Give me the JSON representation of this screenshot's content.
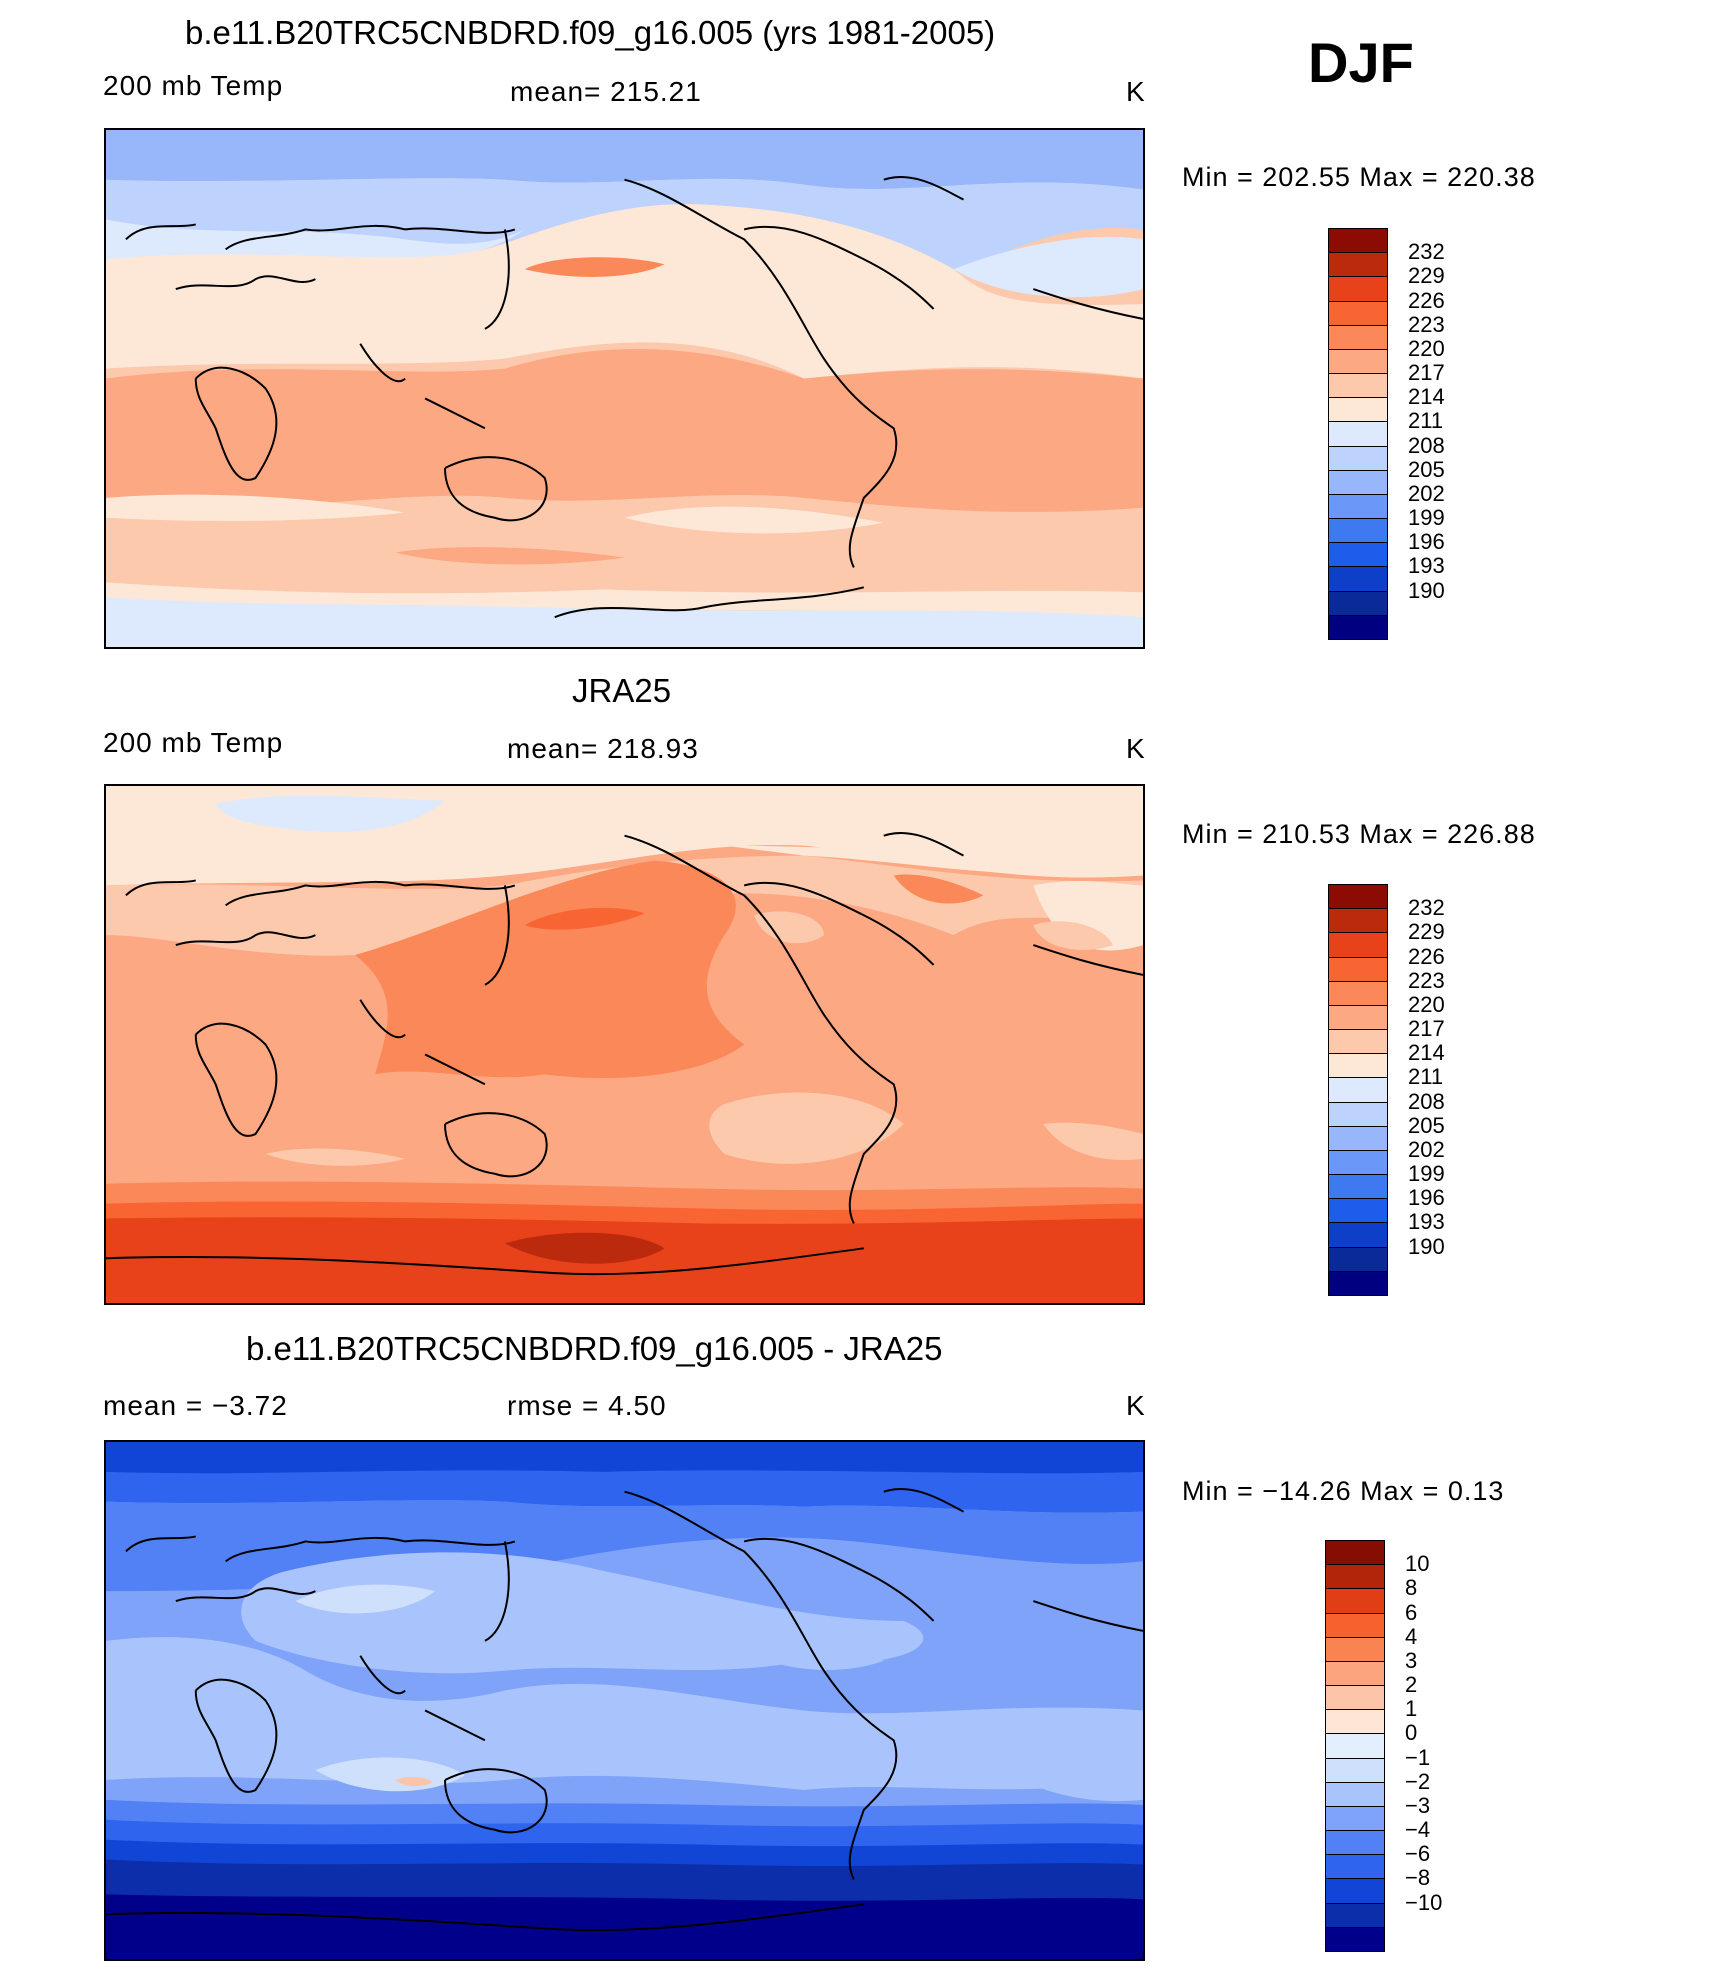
{
  "season": "DJF",
  "colors": {
    "abs_scale": [
      "#000080",
      "#0a2a9a",
      "#0d3fc8",
      "#1e5cec",
      "#3f79f2",
      "#6b97f8",
      "#98b7fb",
      "#bdd3fd",
      "#dde9fc",
      "#fde8d8",
      "#fcc9ad",
      "#fca882",
      "#fb8858",
      "#f96532",
      "#e8421a",
      "#bc2a0d",
      "#8c0c03"
    ],
    "diff_scale": [
      "#00008a",
      "#0d2eaa",
      "#1145d6",
      "#2e64ee",
      "#5281f5",
      "#7fa3f9",
      "#a9c4fc",
      "#cfe0fd",
      "#e3efff",
      "#fde6d6",
      "#fcc5a9",
      "#fba47d",
      "#fa8352",
      "#f7612e",
      "#e23e16",
      "#b3250b",
      "#850d02"
    ]
  },
  "panels": [
    {
      "id": "model",
      "title": "b.e11.B20TRC5CNBDRD.f09_g16.005 (yrs 1981-2005)",
      "left_label": "200 mb Temp",
      "center_label": "mean=  215.21",
      "units": "K",
      "minmax": "Min  =  202.55  Max  =  220.38",
      "ticks": [
        "232",
        "229",
        "226",
        "223",
        "220",
        "217",
        "214",
        "211",
        "208",
        "205",
        "202",
        "199",
        "196",
        "193",
        "190"
      ]
    },
    {
      "id": "obs",
      "title": "JRA25",
      "left_label": "200 mb Temp",
      "center_label": "mean=  218.93",
      "units": "K",
      "minmax": "Min  =  210.53  Max  =  226.88",
      "ticks": [
        "232",
        "229",
        "226",
        "223",
        "220",
        "217",
        "214",
        "211",
        "208",
        "205",
        "202",
        "199",
        "196",
        "193",
        "190"
      ]
    },
    {
      "id": "diff",
      "title": "b.e11.B20TRC5CNBDRD.f09_g16.005 - JRA25",
      "left_label": "mean  =     −3.72",
      "center_label": "rmse  =      4.50",
      "units": "K",
      "minmax": "Min  =  −14.26  Max  =      0.13",
      "ticks": [
        "10",
        "8",
        "6",
        "4",
        "3",
        "2",
        "1",
        "0",
        "−1",
        "−2",
        "−3",
        "−4",
        "−6",
        "−8",
        "−10"
      ]
    }
  ],
  "chart_data": [
    {
      "type": "heatmap",
      "title": "b.e11.B20TRC5CNBDRD.f09_g16.005 (yrs 1981-2005)",
      "variable": "200 mb Temp",
      "units": "K",
      "mean": 215.21,
      "min": 202.55,
      "max": 220.38,
      "contour_levels": [
        190,
        193,
        196,
        199,
        202,
        205,
        208,
        211,
        214,
        217,
        220,
        223,
        226,
        229,
        232
      ]
    },
    {
      "type": "heatmap",
      "title": "JRA25",
      "variable": "200 mb Temp",
      "units": "K",
      "mean": 218.93,
      "min": 210.53,
      "max": 226.88,
      "contour_levels": [
        190,
        193,
        196,
        199,
        202,
        205,
        208,
        211,
        214,
        217,
        220,
        223,
        226,
        229,
        232
      ]
    },
    {
      "type": "heatmap",
      "title": "b.e11.B20TRC5CNBDRD.f09_g16.005 - JRA25",
      "units": "K",
      "mean": -3.72,
      "rmse": 4.5,
      "min": -14.26,
      "max": 0.13,
      "contour_levels": [
        -10,
        -8,
        -6,
        -4,
        -3,
        -2,
        -1,
        0,
        1,
        2,
        3,
        4,
        6,
        8,
        10
      ]
    }
  ]
}
